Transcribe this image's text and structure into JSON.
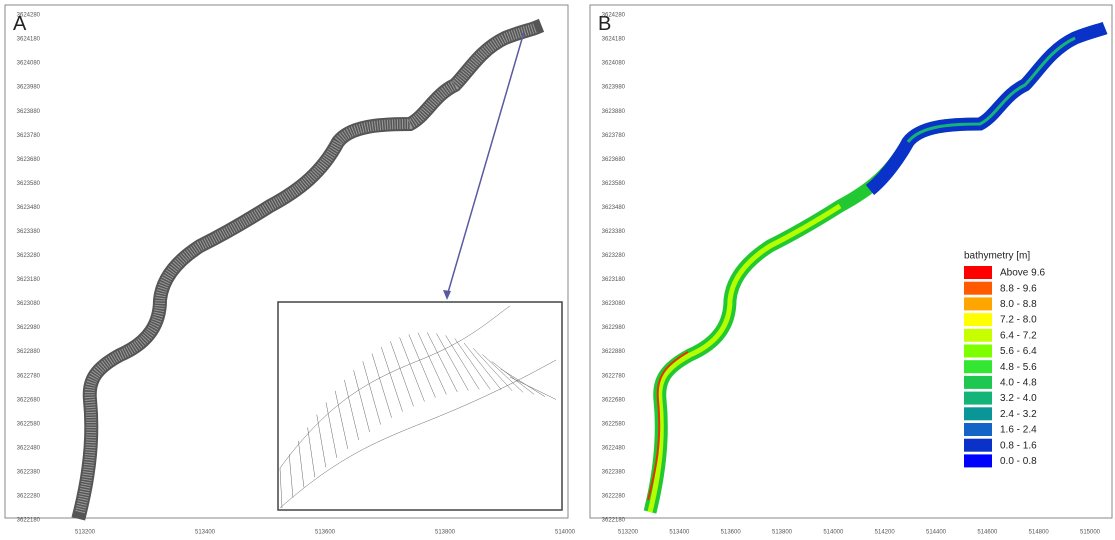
{
  "panels": [
    {
      "label": "A",
      "yticks": [
        "3624280",
        "3624180",
        "3624080",
        "3623980",
        "3623880",
        "3623780",
        "3623680",
        "3623580",
        "3623480",
        "3623380",
        "3623280",
        "3623180",
        "3623080",
        "3622980",
        "3622880",
        "3622780",
        "3622680",
        "3622580",
        "3622480",
        "3622380",
        "3622280",
        "3622180"
      ],
      "xticks": [
        "513200",
        "513400",
        "513600",
        "513800",
        "514000"
      ]
    },
    {
      "label": "B",
      "yticks": [
        "3624280",
        "3624180",
        "3624080",
        "3623980",
        "3623880",
        "3623780",
        "3623680",
        "3623580",
        "3623480",
        "3623380",
        "3623280",
        "3623180",
        "3623080",
        "3622980",
        "3622880",
        "3622780",
        "3622680",
        "3622580",
        "3622480",
        "3622380",
        "3622280",
        "3622180"
      ],
      "xticks": [
        "513200",
        "513400",
        "513600",
        "513800",
        "514000",
        "514200",
        "514400",
        "514600",
        "514800",
        "515000"
      ]
    }
  ],
  "legend": {
    "title": "bathymetry [m]",
    "items": [
      {
        "label": "Above  9.6",
        "color": "#ff0000"
      },
      {
        "label": "8.8 -  9.6",
        "color": "#ff5a00"
      },
      {
        "label": "8.0 -  8.8",
        "color": "#ffa500"
      },
      {
        "label": "7.2 -  8.0",
        "color": "#ffff00"
      },
      {
        "label": "6.4 -  7.2",
        "color": "#c8ff00"
      },
      {
        "label": "5.6 -  6.4",
        "color": "#7dff00"
      },
      {
        "label": "4.8 -  5.6",
        "color": "#32e632"
      },
      {
        "label": "4.0 -  4.8",
        "color": "#1ec850"
      },
      {
        "label": "3.2 -  4.0",
        "color": "#14b478"
      },
      {
        "label": "2.4 -  3.2",
        "color": "#0a9696"
      },
      {
        "label": "1.6 -  2.4",
        "color": "#1464c8"
      },
      {
        "label": "0.8 -  1.6",
        "color": "#0a32c8"
      },
      {
        "label": "0.0 -  0.8",
        "color": "#0000ff"
      }
    ]
  }
}
